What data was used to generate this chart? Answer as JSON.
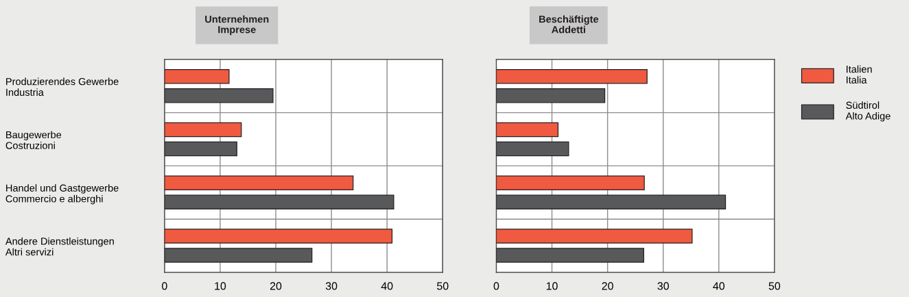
{
  "chart_data": [
    {
      "type": "bar",
      "orientation": "horizontal",
      "title": "Unternehmen\nImprese",
      "categories": [
        "Produzierendes Gewerbe\nIndustria",
        "Baugewerbe\nCostruzioni",
        "Handel und Gastgewerbe\nCommercio e alberghi",
        "Andere Dienstleistungen\nAltri servizi"
      ],
      "series": [
        {
          "name": "Italien\nItalia",
          "color": "#f05a40",
          "values": [
            11.6,
            13.8,
            33.9,
            40.9
          ]
        },
        {
          "name": "Südtirol\nAlto Adige",
          "color": "#58595b",
          "values": [
            19.5,
            13.0,
            41.2,
            26.5
          ]
        }
      ],
      "xlim": [
        0,
        50
      ],
      "xticks": [
        0,
        10,
        20,
        30,
        40,
        50
      ],
      "grid": true,
      "legend": "right"
    },
    {
      "type": "bar",
      "orientation": "horizontal",
      "title": "Beschäftigte\nAddetti",
      "categories": [
        null,
        null,
        null,
        null
      ],
      "series": [
        {
          "color": "#f05a40",
          "values": [
            27.1,
            11.1,
            26.6,
            35.2
          ]
        },
        {
          "color": "#58595b",
          "values": [
            19.5,
            13.0,
            41.2,
            26.5
          ]
        }
      ],
      "xlim": [
        0,
        50
      ],
      "xticks": [
        0,
        10,
        20,
        30,
        40,
        50
      ],
      "grid": true
    }
  ]
}
